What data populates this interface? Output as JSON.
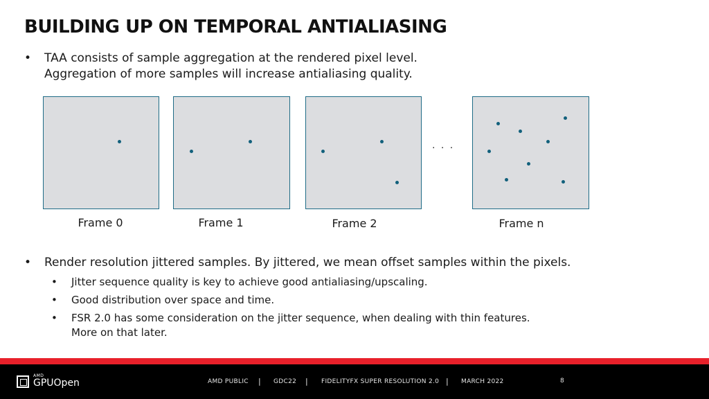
{
  "title": "BUILDING UP ON TEMPORAL ANTIALIASING",
  "bullets_top": {
    "bullet": "•",
    "line1": "TAA consists of sample aggregation at the rendered pixel level.",
    "line2": "Aggregation of more samples will increase antialiasing quality."
  },
  "diagram": {
    "frames": [
      {
        "label": "Frame 0",
        "samples": [
          [
            0.66,
            0.4
          ]
        ]
      },
      {
        "label": "Frame 1",
        "samples": [
          [
            0.15,
            0.49
          ],
          [
            0.66,
            0.4
          ]
        ]
      },
      {
        "label": "Frame 2",
        "samples": [
          [
            0.15,
            0.49
          ],
          [
            0.66,
            0.4
          ],
          [
            0.79,
            0.77
          ]
        ]
      },
      {
        "label": "Frame n",
        "samples": [
          [
            0.22,
            0.24
          ],
          [
            0.41,
            0.31
          ],
          [
            0.8,
            0.19
          ],
          [
            0.65,
            0.4
          ],
          [
            0.14,
            0.49
          ],
          [
            0.48,
            0.6
          ],
          [
            0.29,
            0.74
          ],
          [
            0.78,
            0.76
          ]
        ]
      }
    ],
    "ellipsis": ". . ."
  },
  "bullets_bottom": {
    "bullet": "•",
    "main": "Render resolution jittered samples. By jittered, we mean offset samples within the pixels.",
    "subs": [
      "Jitter sequence quality is key to achieve good antialiasing/upscaling.",
      "Good distribution over space and time.",
      "FSR 2.0 has some consideration on the jitter sequence, when dealing with thin features."
    ],
    "sub3_line2": "More on that later."
  },
  "footer": {
    "logo_small": "AMD",
    "logo_big": "GPUOpen",
    "items": [
      "AMD PUBLIC",
      "GDC22",
      "FIDELITYFX SUPER RESOLUTION 2.0",
      "MARCH 2022"
    ],
    "separator": "|",
    "page": "8"
  },
  "colors": {
    "accent_red": "#e8202a",
    "frame_border": "#1e6b86",
    "frame_fill": "#dcdde0",
    "sample": "#12607c"
  }
}
